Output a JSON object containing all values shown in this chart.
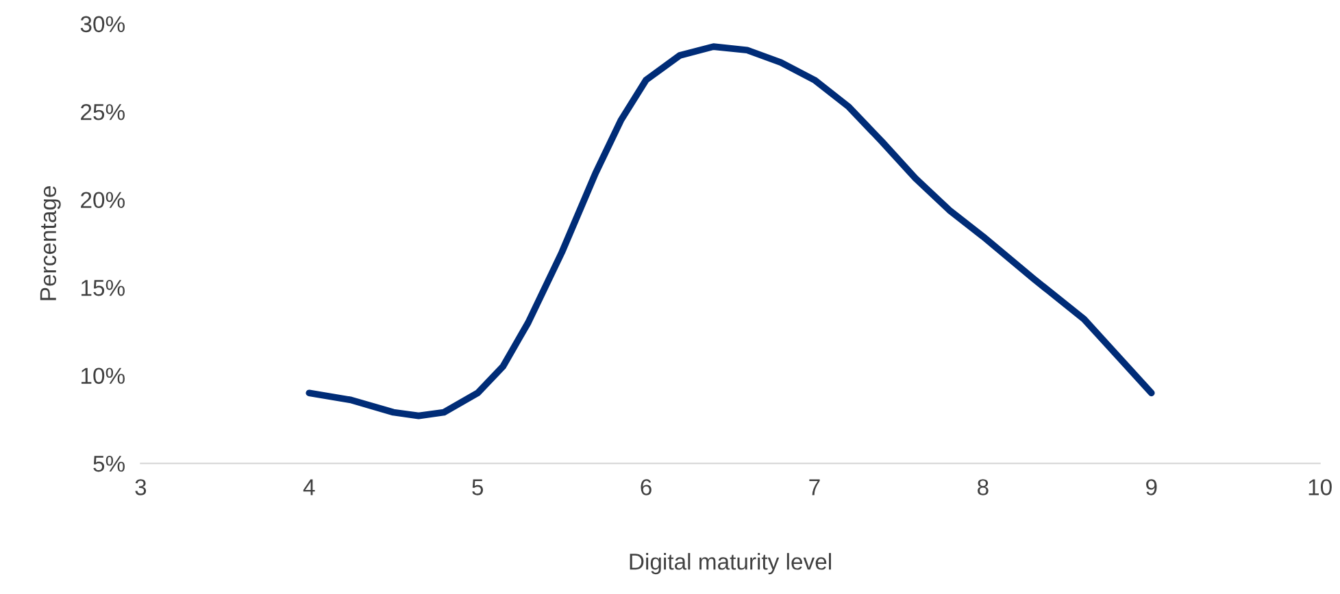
{
  "chart_data": {
    "type": "line",
    "xlabel": "Digital maturity level",
    "ylabel": "Percentage",
    "x": [
      4,
      4.25,
      4.5,
      4.65,
      4.8,
      5,
      5.15,
      5.3,
      5.5,
      5.7,
      5.85,
      6,
      6.2,
      6.4,
      6.6,
      6.8,
      7,
      7.2,
      7.4,
      7.6,
      7.8,
      8,
      8.3,
      8.6,
      9
    ],
    "series": [
      {
        "color": "#002c77",
        "values": [
          9,
          8.6,
          7.9,
          7.7,
          7.9,
          9,
          10.5,
          13,
          17,
          21.5,
          24.5,
          26.8,
          28.2,
          28.7,
          28.5,
          27.8,
          26.8,
          25.3,
          23.3,
          21.2,
          19.4,
          17.9,
          15.5,
          13.2,
          9
        ]
      }
    ],
    "xlim": [
      3,
      10
    ],
    "xticks": [
      3,
      4,
      5,
      6,
      7,
      8,
      9,
      10
    ],
    "ylim": [
      5,
      30
    ],
    "yticks": [
      {
        "value": 5,
        "label": "5%"
      },
      {
        "value": 10,
        "label": "10%"
      },
      {
        "value": 15,
        "label": "15%"
      },
      {
        "value": 20,
        "label": "20%"
      },
      {
        "value": 25,
        "label": "25%"
      },
      {
        "value": 30,
        "label": "30%"
      }
    ],
    "grid": false,
    "legend": false,
    "marker": "none",
    "line_style": "solid"
  }
}
